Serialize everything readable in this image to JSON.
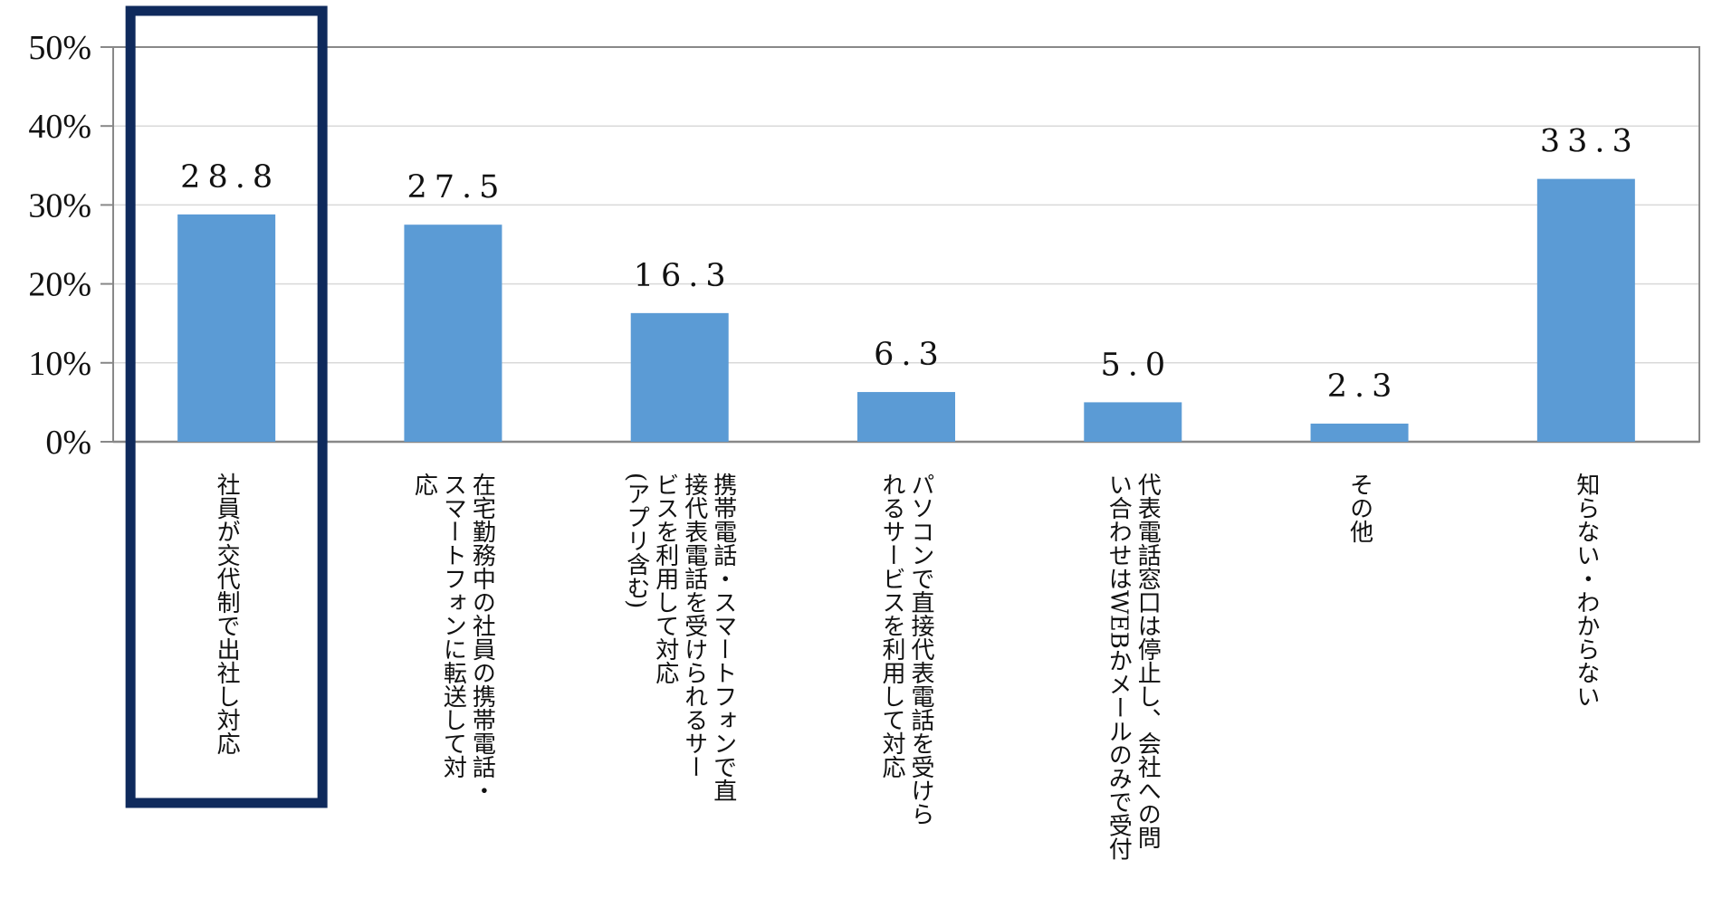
{
  "chart_data": {
    "type": "bar",
    "title": "",
    "xlabel": "",
    "ylabel": "",
    "ylim": [
      0,
      50
    ],
    "y_tick_values": [
      0,
      10,
      20,
      30,
      40,
      50
    ],
    "y_tick_labels": [
      "0%",
      "10%",
      "20%",
      "30%",
      "40%",
      "50%"
    ],
    "grid": true,
    "legend": "none",
    "categories": [
      "社員が交代制で出社し対応",
      "在宅勤務中の社員の携帯電話・スマートフォンに転送して対応",
      "携帯電話・スマートフォンで直接代表電話を受けられるサービスを利用して対応（アプリ含む）",
      "パソコンで直接代表電話を受けられるサービスを利用して対応",
      "代表電話窓口は停止し、会社への問い合わせはWEBかメールのみで受付",
      "その他",
      "知らない・わからない"
    ],
    "category_label_lines": [
      [
        "社員が交代制で出社し対応"
      ],
      [
        "在宅勤務中の社員の携帯電話・",
        "スマートフォンに転送して対",
        "応"
      ],
      [
        "携帯電話・スマートフォンで直",
        "接代表電話を受けられるサー",
        "ビスを利用して対応",
        "(アプリ含む)"
      ],
      [
        "パソコンで直接代表電話を受けら",
        "れるサービスを利用して対応"
      ],
      [
        "代表電話窓口は停止し、会社への問",
        "い合わせはWEBかメールのみで受付"
      ],
      [
        "その他"
      ],
      [
        "知らない・わからない"
      ]
    ],
    "values": [
      28.8,
      27.5,
      16.3,
      6.3,
      5.0,
      2.3,
      33.3
    ],
    "value_labels": [
      "28.8",
      "27.5",
      "16.3",
      "6.3",
      "5.0",
      "2.3",
      "33.3"
    ],
    "highlighted_index": 0,
    "colors": {
      "bar": "#5b9bd5",
      "highlight_box": "#0f2a5c",
      "grid": "#d9d9d9",
      "axis": "#888888",
      "text": "#111111"
    }
  }
}
